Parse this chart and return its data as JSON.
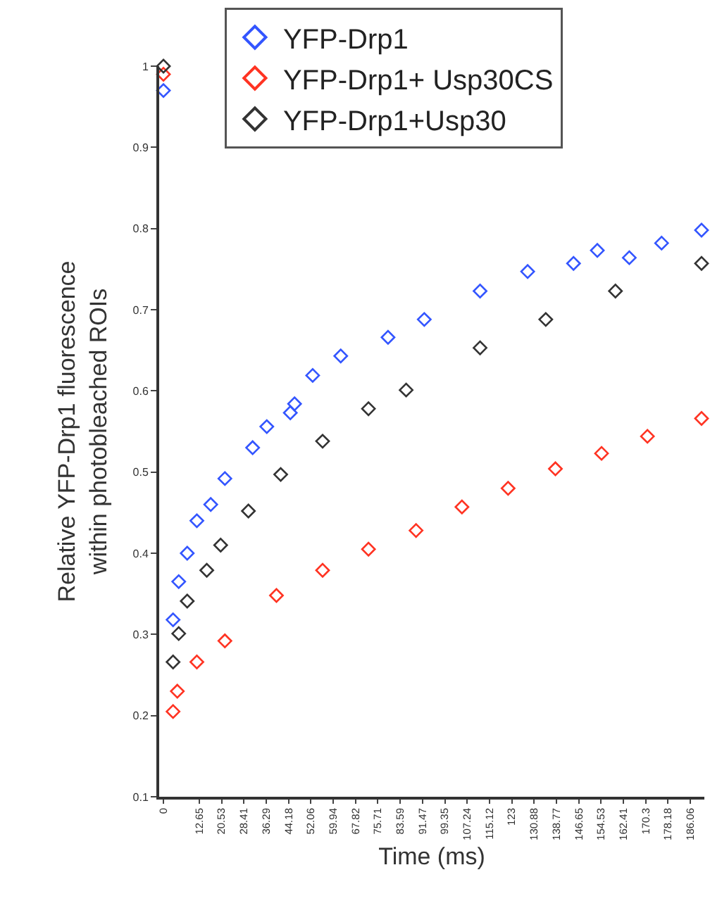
{
  "chart_data": {
    "type": "scatter",
    "xlabel": "Time (ms)",
    "ylabel": "Relative YFP-Drp1 fluorescence\nwithin photobleached ROIs",
    "xlim": [
      -1.5,
      191
    ],
    "xticks": [
      0,
      12.65,
      20.53,
      28.41,
      36.29,
      44.18,
      52.06,
      59.94,
      67.82,
      75.71,
      83.59,
      91.47,
      99.35,
      107.24,
      115.12,
      123,
      130.88,
      138.77,
      146.65,
      154.53,
      162.41,
      170.3,
      178.18,
      186.06
    ],
    "ylim": [
      0.1,
      1
    ],
    "yticks": [
      0.1,
      {
        "value": 0.2,
        "label": "0.2"
      },
      {
        "value": 0.3,
        "label": "0.3"
      },
      {
        "value": 0.4,
        "label": "0.4"
      },
      {
        "value": 0.5,
        "label": "0.5"
      },
      {
        "value": 0.6,
        "label": "0.6"
      },
      {
        "value": 0.7,
        "label": "0.7"
      },
      {
        "value": 0.8,
        "label": "0.8"
      },
      {
        "value": 0.9,
        "label": "0.9"
      },
      1
    ],
    "grid": false,
    "legend": "top",
    "marker": "diamond",
    "series": [
      {
        "name": "YFP-Drp1",
        "color": "#3355ff",
        "x": [
          0,
          3.4,
          5.4,
          8.4,
          11.8,
          16.7,
          21.7,
          31.5,
          36.5,
          44.8,
          46.3,
          52.7,
          62.6,
          79.3,
          92.1,
          111.8,
          128.6,
          144.8,
          153.2,
          164.5,
          175.9,
          190
        ],
        "values": [
          0.97,
          0.318,
          0.365,
          0.4,
          0.44,
          0.46,
          0.492,
          0.53,
          0.556,
          0.573,
          0.584,
          0.619,
          0.643,
          0.666,
          0.688,
          0.723,
          0.747,
          0.757,
          0.773,
          0.764,
          0.782,
          0.798
        ]
      },
      {
        "name": "YFP-Drp1+ Usp30CS",
        "color": "#ff3322",
        "x": [
          0,
          3.4,
          4.9,
          11.8,
          21.7,
          39.9,
          56.2,
          72.4,
          89.2,
          105.4,
          121.7,
          138.4,
          154.7,
          170.9,
          190
        ],
        "values": [
          0.99,
          0.205,
          0.23,
          0.266,
          0.292,
          0.348,
          0.379,
          0.405,
          0.428,
          0.457,
          0.48,
          0.504,
          0.523,
          0.544,
          0.566
        ]
      },
      {
        "name": "YFP-Drp1+Usp30",
        "color": "#333333",
        "x": [
          0,
          3.4,
          5.4,
          8.4,
          15.3,
          20.2,
          30.0,
          41.4,
          56.2,
          72.4,
          85.7,
          111.8,
          135.0,
          159.6,
          190
        ],
        "values": [
          1.0,
          0.266,
          0.301,
          0.341,
          0.379,
          0.41,
          0.452,
          0.497,
          0.538,
          0.578,
          0.601,
          0.653,
          0.688,
          0.723,
          0.757
        ]
      }
    ]
  }
}
